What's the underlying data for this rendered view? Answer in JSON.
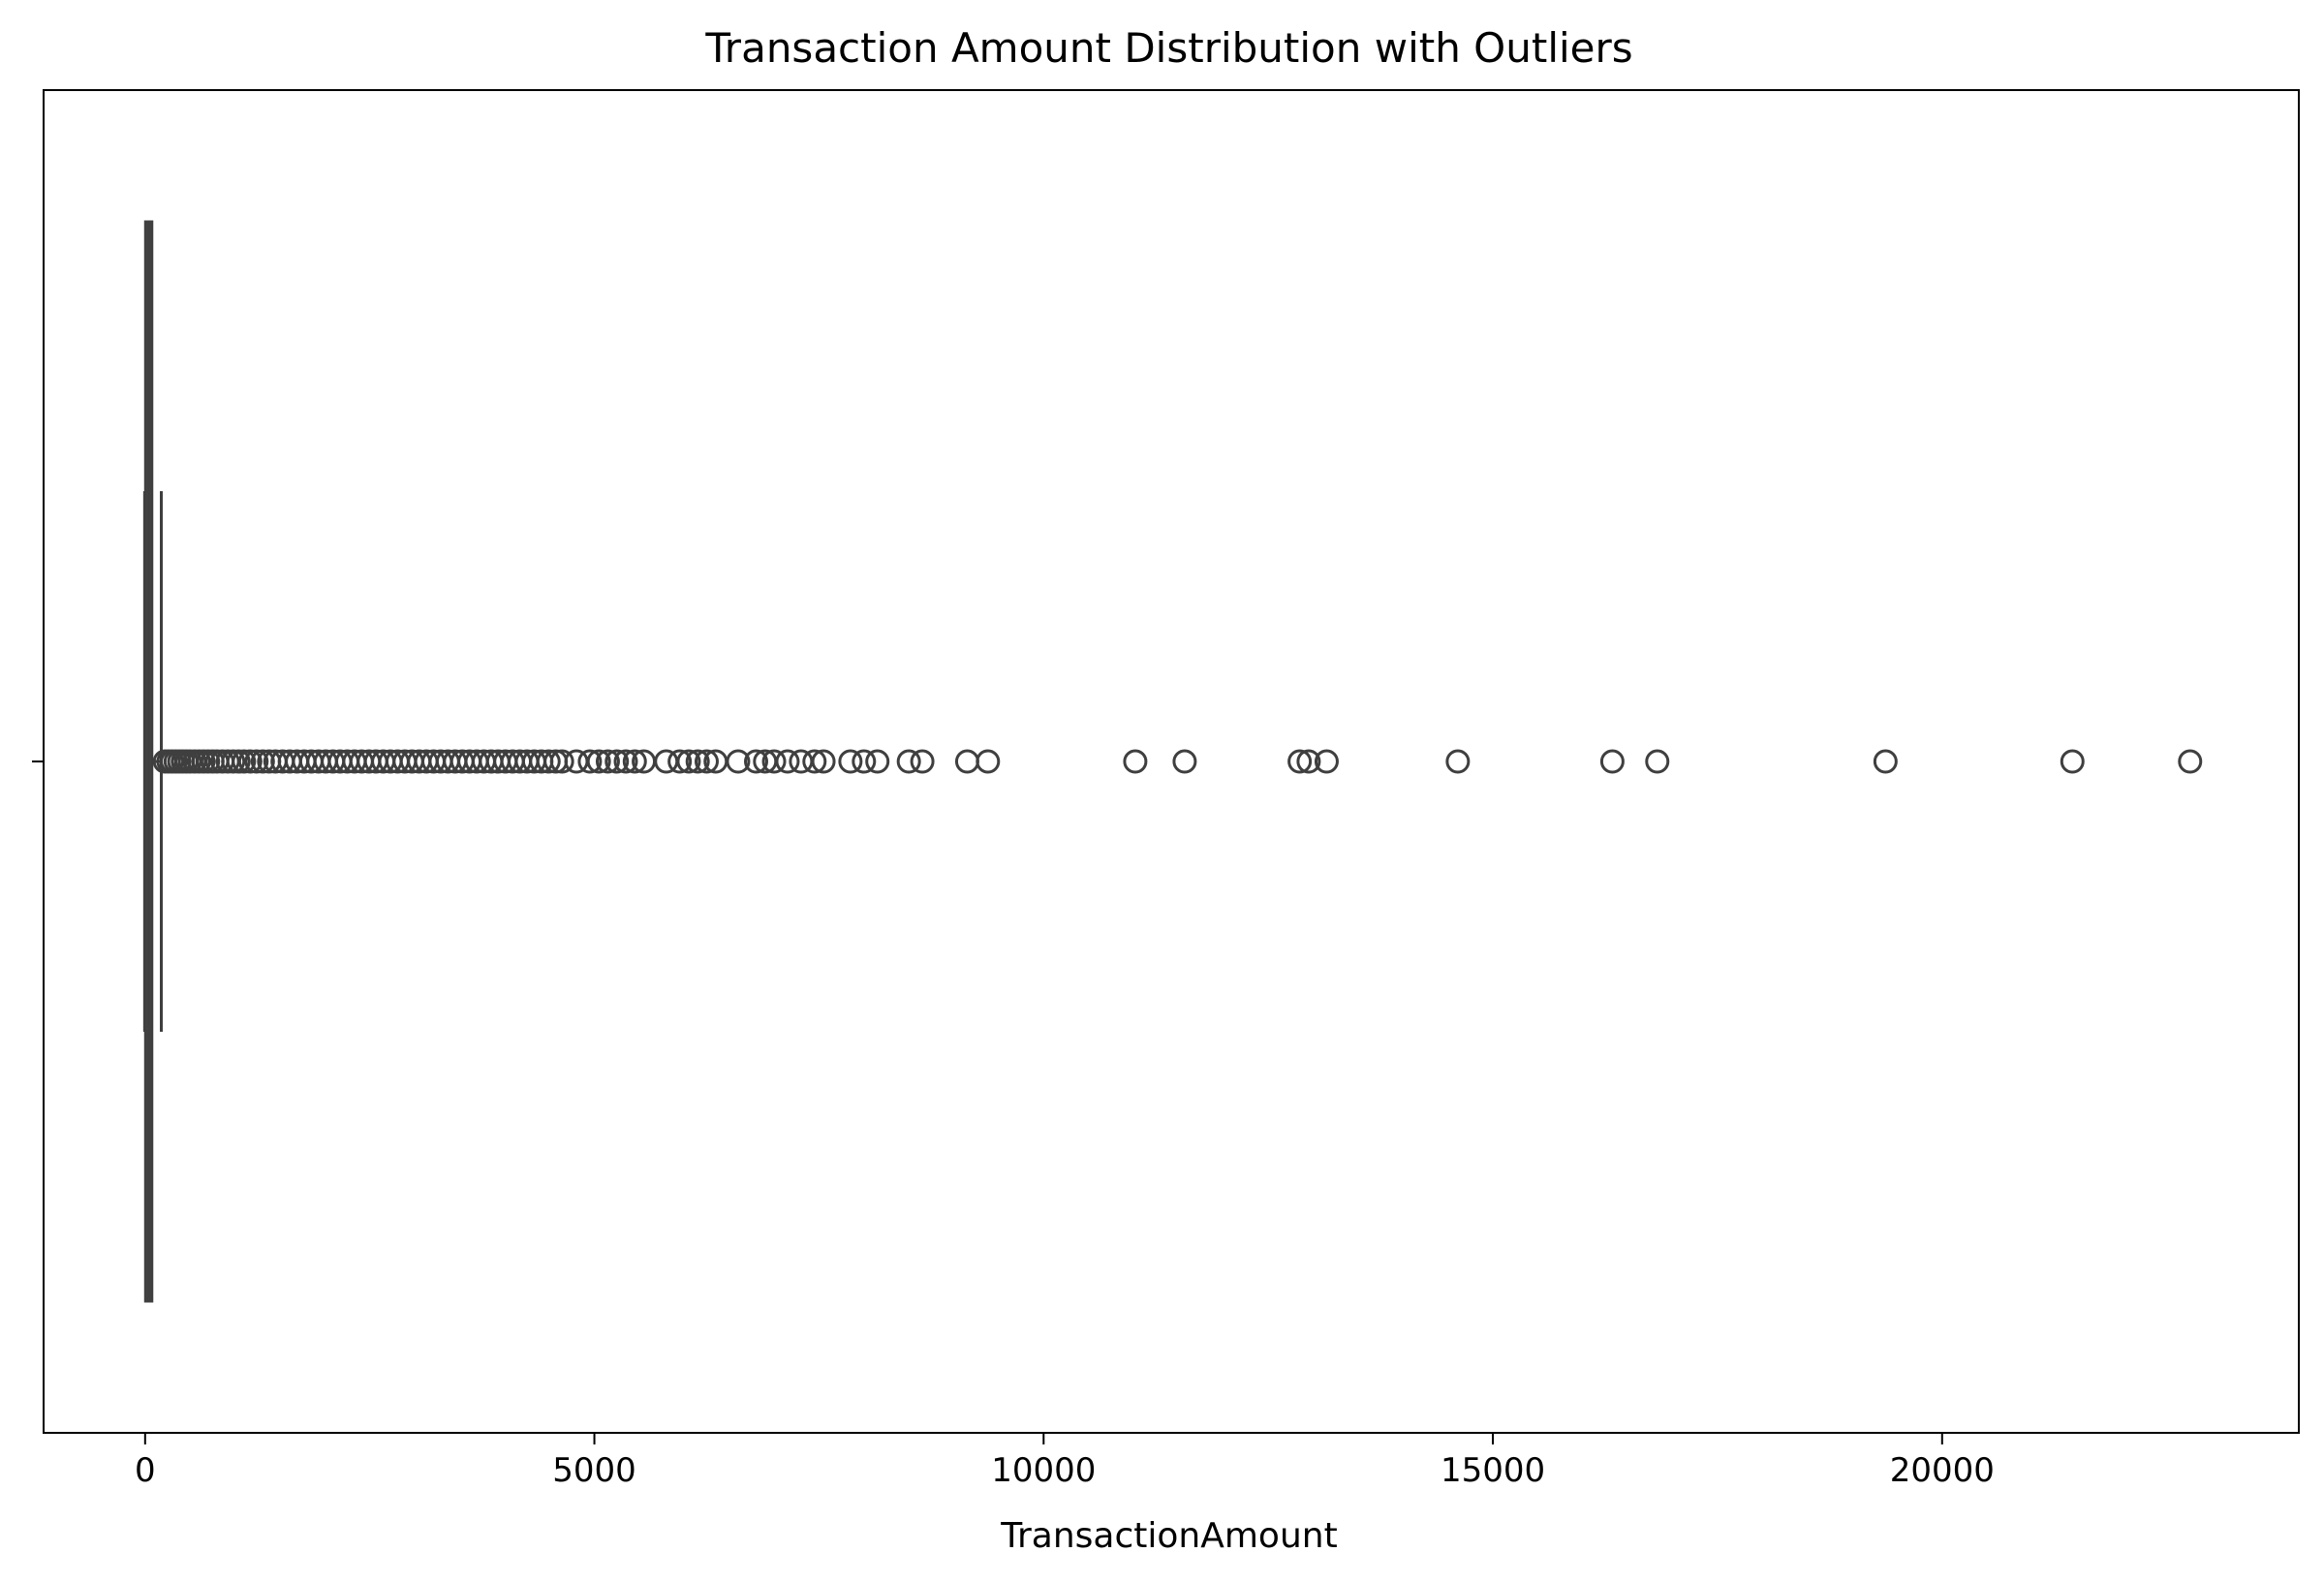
{
  "chart_data": {
    "type": "box",
    "title": "Transaction Amount Distribution with Outliers",
    "xlabel": "TransactionAmount",
    "ylabel": "",
    "xlim": [
      -1130,
      23970
    ],
    "xticks": [
      {
        "value": 0,
        "label": "0"
      },
      {
        "value": 5000,
        "label": "5000"
      },
      {
        "value": 10000,
        "label": "10000"
      },
      {
        "value": 15000,
        "label": "15000"
      },
      {
        "value": 20000,
        "label": "20000"
      }
    ],
    "grid": false,
    "legend": "none",
    "colors": {
      "box_fill": "#4c4c4c",
      "line": "#3f3f3f",
      "outlier_edge": "#3f3f3f"
    },
    "box": {
      "whisker_low": -5,
      "q1": 5,
      "median": 40,
      "q3": 75,
      "whisker_high": 180
    },
    "outliers": [
      220,
      260,
      300,
      340,
      380,
      420,
      460,
      500,
      550,
      600,
      650,
      700,
      750,
      800,
      860,
      920,
      980,
      1040,
      1100,
      1170,
      1240,
      1310,
      1380,
      1450,
      1530,
      1610,
      1690,
      1770,
      1850,
      1930,
      2010,
      2090,
      2170,
      2250,
      2330,
      2410,
      2490,
      2570,
      2650,
      2730,
      2810,
      2890,
      2970,
      3050,
      3130,
      3210,
      3290,
      3370,
      3450,
      3530,
      3610,
      3690,
      3770,
      3850,
      3930,
      4010,
      4090,
      4170,
      4250,
      4330,
      4410,
      4490,
      4570,
      4640,
      4800,
      4950,
      5050,
      5150,
      5250,
      5350,
      5450,
      5550,
      5800,
      5950,
      6050,
      6150,
      6250,
      6350,
      6600,
      6800,
      6900,
      7000,
      7150,
      7300,
      7450,
      7550,
      7850,
      8000,
      8150,
      8500,
      8650,
      9150,
      9380,
      11020,
      11570,
      12850,
      12950,
      13150,
      14610,
      16330,
      16830,
      19370,
      21450,
      22760
    ]
  }
}
